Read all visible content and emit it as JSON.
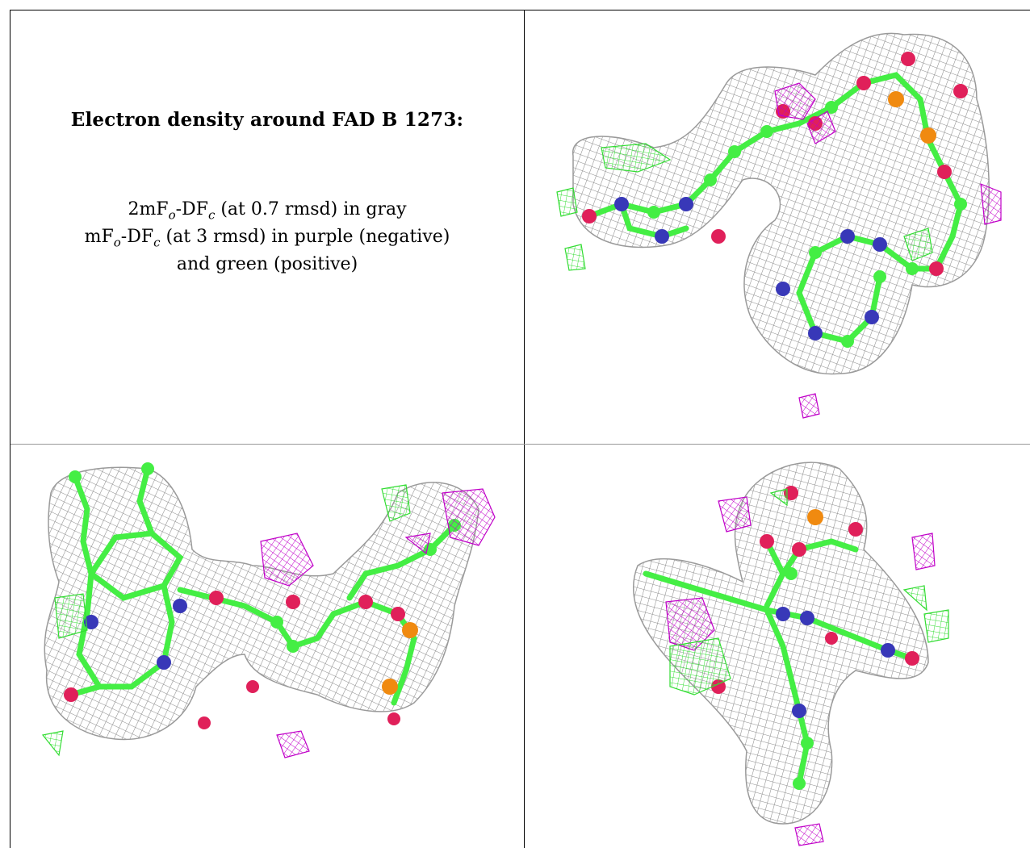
{
  "caption": {
    "title": "Electron density around FAD B 1273:",
    "line1_prefix": "2mF",
    "line1_sub1": "o",
    "line1_mid": "-DF",
    "line1_sub2": "c",
    "line1_suffix": " (at 0.7 rmsd) in gray",
    "line2_prefix": "mF",
    "line2_sub1": "o",
    "line2_mid": "-DF",
    "line2_sub2": "c",
    "line2_suffix": " (at 3 rmsd) in purple (negative)",
    "line3": "and green (positive)"
  },
  "colors": {
    "mesh_gray": "#8c8c8c",
    "negative_purple": "#c000c8",
    "positive_green": "#33dd33",
    "carbon_green": "#44ee44",
    "nitrogen_blue": "#3838b8",
    "oxygen_red": "#e0205a",
    "phosphorus_orange": "#f08a10",
    "border": "#000000"
  },
  "panels": [
    {
      "id": "view-1"
    },
    {
      "id": "view-2"
    },
    {
      "id": "view-3"
    }
  ]
}
